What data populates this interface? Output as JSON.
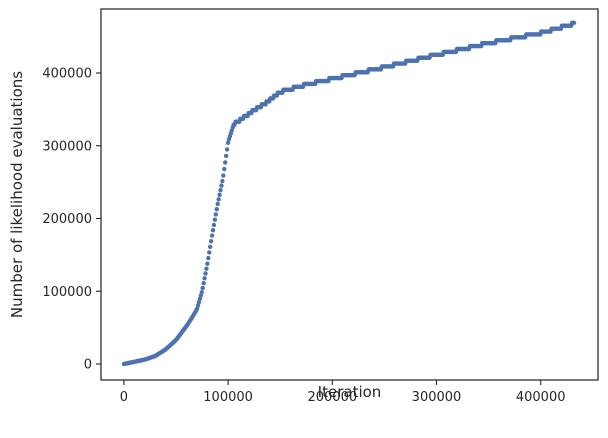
{
  "chart_data": {
    "type": "scatter",
    "title": "",
    "xlabel": "Iteration",
    "ylabel": "Number of likelihood evaluations",
    "xlim": [
      -22000,
      455000
    ],
    "ylim": [
      -22000,
      488000
    ],
    "xticks": [
      0,
      100000,
      200000,
      300000,
      400000
    ],
    "xtick_labels": [
      "0",
      "100000",
      "200000",
      "300000",
      "400000"
    ],
    "yticks": [
      0,
      100000,
      200000,
      300000,
      400000
    ],
    "ytick_labels": [
      "0",
      "100000",
      "200000",
      "300000",
      "400000"
    ],
    "grid": false,
    "legend": "none",
    "marker_color": "#4c72b0",
    "curve_points": {
      "x": [
        0,
        10000,
        20000,
        30000,
        40000,
        50000,
        60000,
        65000,
        70000,
        75000,
        80000,
        85000,
        90000,
        95000,
        100000,
        105000,
        110000,
        120000,
        135000,
        150000,
        175000,
        200000,
        250000,
        300000,
        350000,
        400000,
        432000
      ],
      "y": [
        0,
        3000,
        6000,
        11000,
        20000,
        33000,
        52000,
        63000,
        75000,
        100000,
        137000,
        180000,
        220000,
        255000,
        305000,
        328000,
        333000,
        343000,
        357000,
        373000,
        383000,
        391000,
        407000,
        424000,
        440000,
        454000,
        467000
      ]
    }
  }
}
